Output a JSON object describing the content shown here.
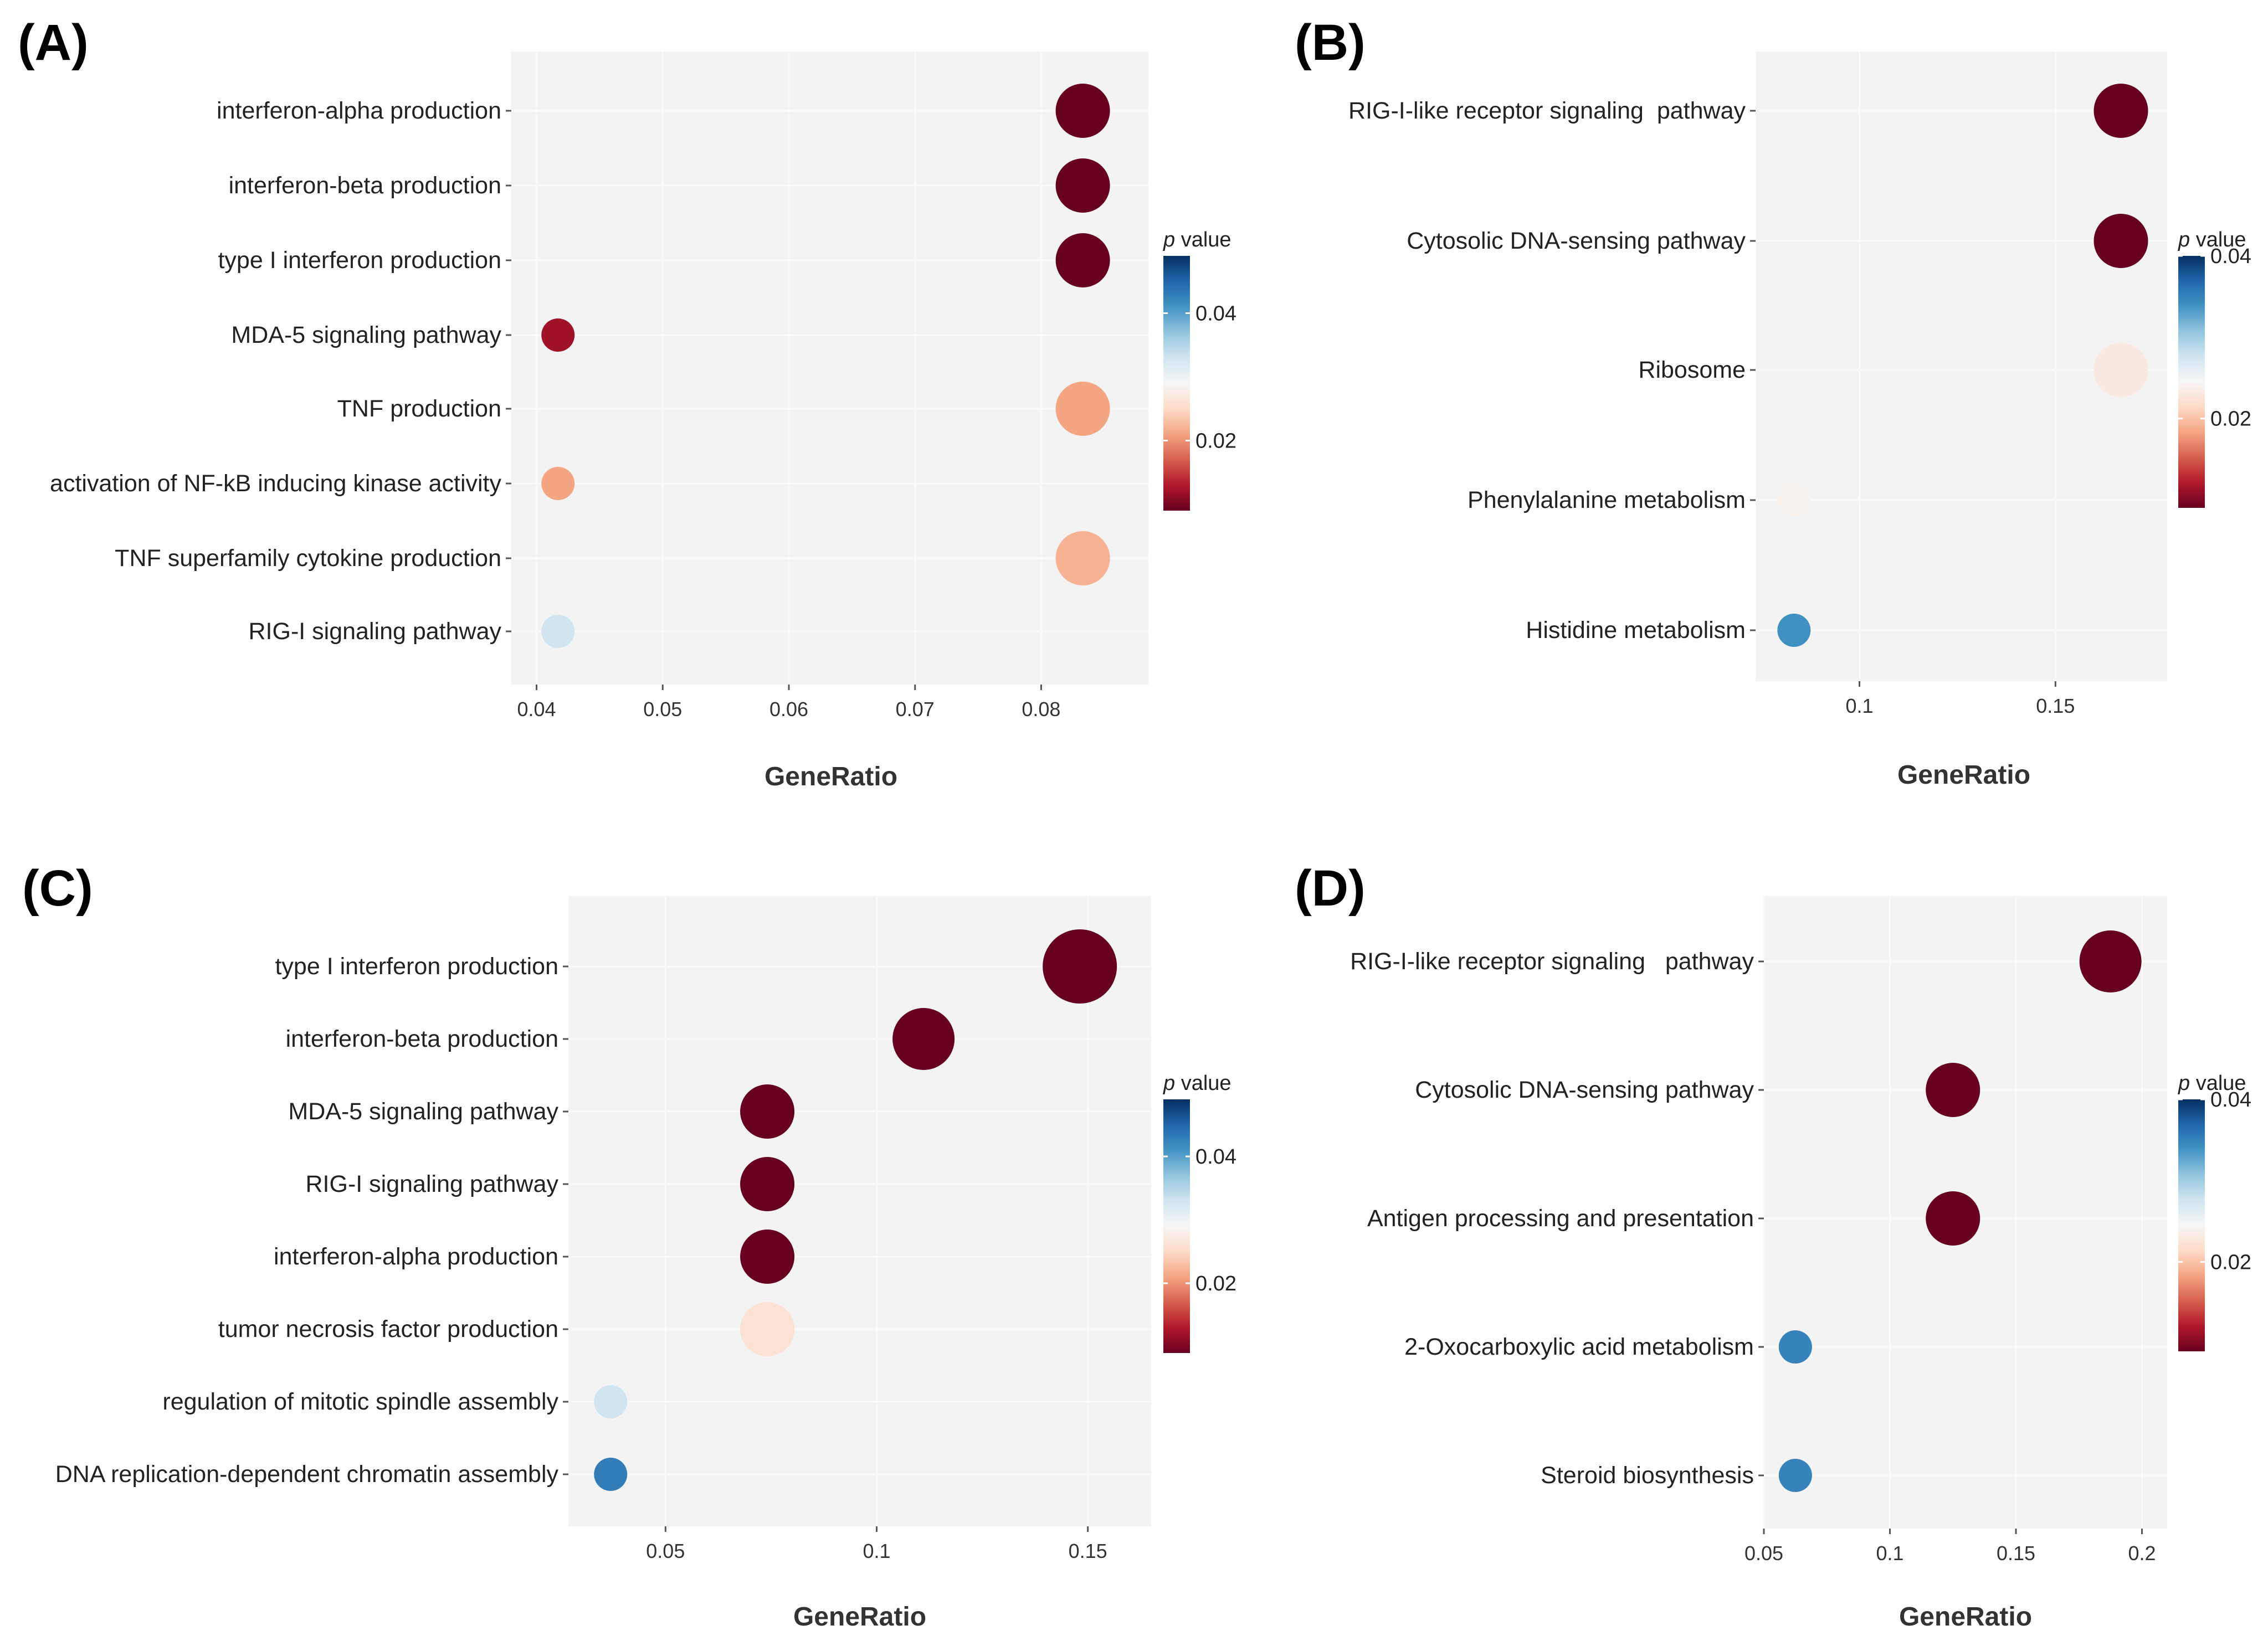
{
  "chart_data": [
    {
      "panel": "(A)",
      "type": "scatter",
      "xlabel": "GeneRatio",
      "xlim": [
        0.038,
        0.0885
      ],
      "xticks": [
        0.04,
        0.05,
        0.06,
        0.07,
        0.08
      ],
      "xtick_labels": [
        "0.04",
        "0.05",
        "0.06",
        "0.07",
        "0.08"
      ],
      "legend": {
        "title_italic": "p",
        "title_rest": " value",
        "ticks": [
          0.02,
          0.04
        ],
        "tick_labels": [
          "0.02",
          "0.04"
        ],
        "range": [
          0.009,
          0.049
        ]
      },
      "points": [
        {
          "term": "interferon-alpha production",
          "x": 0.0833,
          "p": 0.001,
          "count": 2
        },
        {
          "term": "interferon-beta production",
          "x": 0.0833,
          "p": 0.001,
          "count": 2
        },
        {
          "term": "type I interferon production",
          "x": 0.0833,
          "p": 0.001,
          "count": 2
        },
        {
          "term": "MDA-5 signaling pathway",
          "x": 0.0417,
          "p": 0.012,
          "count": 1
        },
        {
          "term": "TNF production",
          "x": 0.0833,
          "p": 0.021,
          "count": 2
        },
        {
          "term": "activation of NF-kB inducing kinase activity",
          "x": 0.0417,
          "p": 0.021,
          "count": 1
        },
        {
          "term": "TNF superfamily cytokine production",
          "x": 0.0833,
          "p": 0.022,
          "count": 2
        },
        {
          "term": "RIG-I signaling pathway",
          "x": 0.0417,
          "p": 0.033,
          "count": 1
        }
      ]
    },
    {
      "panel": "(B)",
      "type": "scatter",
      "xlabel": "GeneRatio",
      "xlim": [
        0.0735,
        0.1785
      ],
      "xticks": [
        0.1,
        0.15
      ],
      "xtick_labels": [
        "0.1",
        "0.15"
      ],
      "legend": {
        "title_italic": "p",
        "title_rest": " value",
        "ticks": [
          0.02,
          0.04
        ],
        "tick_labels": [
          "0.02",
          "0.04"
        ],
        "range": [
          0.009,
          0.04
        ]
      },
      "points": [
        {
          "term": "RIG-I-like receptor signaling  pathway",
          "x": 0.1667,
          "p": 0.001,
          "count": 2
        },
        {
          "term": "Cytosolic DNA-sensing pathway",
          "x": 0.1667,
          "p": 0.001,
          "count": 2
        },
        {
          "term": "Ribosome",
          "x": 0.1667,
          "p": 0.023,
          "count": 2
        },
        {
          "term": "Phenylalanine metabolism",
          "x": 0.0833,
          "p": 0.024,
          "count": 1
        },
        {
          "term": "Histidine metabolism",
          "x": 0.0833,
          "p": 0.034,
          "count": 1
        }
      ]
    },
    {
      "panel": "(C)",
      "type": "scatter",
      "xlabel": "GeneRatio",
      "xlim": [
        0.027,
        0.165
      ],
      "xticks": [
        0.05,
        0.1,
        0.15
      ],
      "xtick_labels": [
        "0.05",
        "0.1",
        "0.15"
      ],
      "legend": {
        "title_italic": "p",
        "title_rest": " value",
        "ticks": [
          0.02,
          0.04
        ],
        "tick_labels": [
          "0.02",
          "0.04"
        ],
        "range": [
          0.009,
          0.049
        ]
      },
      "points": [
        {
          "term": "type I interferon production",
          "x": 0.1481,
          "p": 0.001,
          "count": 4
        },
        {
          "term": "interferon-beta production",
          "x": 0.1111,
          "p": 0.001,
          "count": 3
        },
        {
          "term": "MDA-5 signaling pathway",
          "x": 0.0741,
          "p": 0.001,
          "count": 2
        },
        {
          "term": "RIG-I signaling pathway",
          "x": 0.0741,
          "p": 0.001,
          "count": 2
        },
        {
          "term": "interferon-alpha production",
          "x": 0.0741,
          "p": 0.001,
          "count": 2
        },
        {
          "term": "tumor necrosis factor production",
          "x": 0.0741,
          "p": 0.026,
          "count": 2
        },
        {
          "term": "regulation of mitotic spindle assembly",
          "x": 0.037,
          "p": 0.033,
          "count": 1
        },
        {
          "term": "DNA replication-dependent chromatin assembly",
          "x": 0.037,
          "p": 0.043,
          "count": 1
        }
      ]
    },
    {
      "panel": "(D)",
      "type": "scatter",
      "xlabel": "GeneRatio",
      "xlim": [
        0.05,
        0.21
      ],
      "xticks": [
        0.05,
        0.1,
        0.15,
        0.2
      ],
      "xtick_labels": [
        "0.05",
        "0.1",
        "0.15",
        "0.2"
      ],
      "legend": {
        "title_italic": "p",
        "title_rest": " value",
        "ticks": [
          0.02,
          0.04
        ],
        "tick_labels": [
          "0.02",
          "0.04"
        ],
        "range": [
          0.009,
          0.04
        ]
      },
      "points": [
        {
          "term": "RIG-I-like receptor signaling   pathway",
          "x": 0.1875,
          "p": 0.001,
          "count": 3
        },
        {
          "term": "Cytosolic DNA-sensing pathway",
          "x": 0.125,
          "p": 0.001,
          "count": 2
        },
        {
          "term": "Antigen processing and presentation",
          "x": 0.125,
          "p": 0.001,
          "count": 2
        },
        {
          "term": "2-Oxocarboxylic acid metabolism",
          "x": 0.0625,
          "p": 0.035,
          "count": 1
        },
        {
          "term": "Steroid biosynthesis",
          "x": 0.0625,
          "p": 0.035,
          "count": 1
        }
      ]
    }
  ],
  "colors": {
    "panel_background": "#f3f3f3",
    "gridline": "#fafafa",
    "gradient": [
      "#67001f",
      "#b2182b",
      "#d6604d",
      "#f4a582",
      "#fddbc7",
      "#f7f7f7",
      "#d1e5f0",
      "#92c5de",
      "#4393c3",
      "#2166ac",
      "#053061"
    ]
  }
}
